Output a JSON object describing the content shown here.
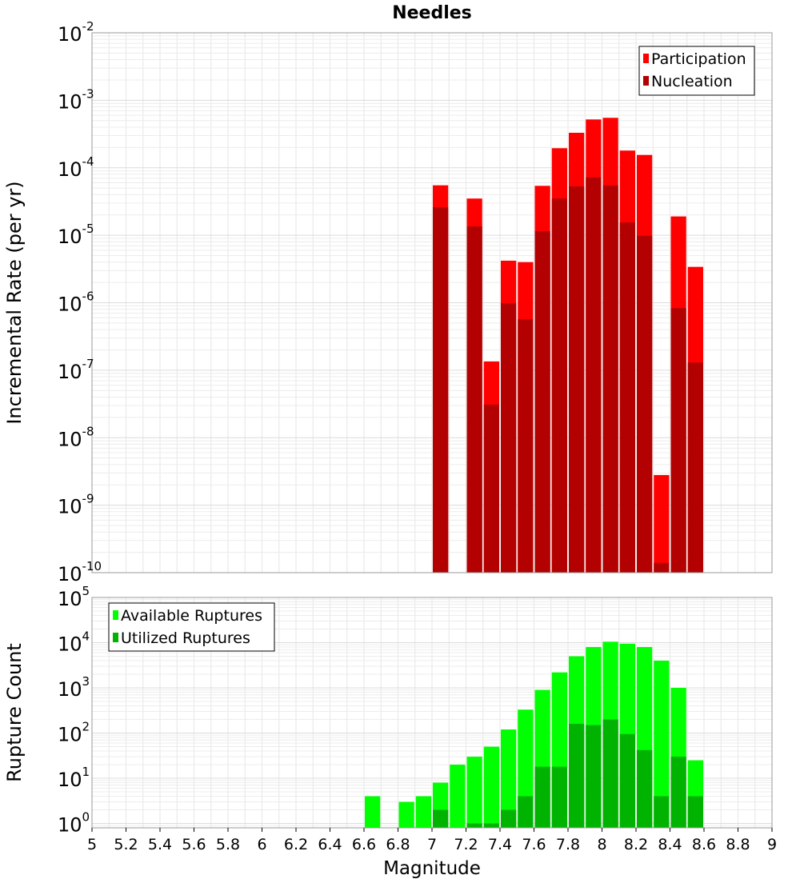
{
  "chart_data": [
    {
      "type": "bar",
      "title": "Needles",
      "xlabel": "",
      "ylabel": "Incremental Rate (per yr)",
      "yscale": "log",
      "ylim": [
        1e-10,
        0.01
      ],
      "xlim": [
        5,
        9
      ],
      "bar_width": 0.1,
      "grid": true,
      "legend_position": "top-right",
      "colors": {
        "participation": "#ff0000",
        "nucleation": "#b30000"
      },
      "y_ticks": [
        {
          "base": "10",
          "exp": "-10"
        },
        {
          "base": "10",
          "exp": "-9"
        },
        {
          "base": "10",
          "exp": "-8"
        },
        {
          "base": "10",
          "exp": "-7"
        },
        {
          "base": "10",
          "exp": "-6"
        },
        {
          "base": "10",
          "exp": "-5"
        },
        {
          "base": "10",
          "exp": "-4"
        },
        {
          "base": "10",
          "exp": "-3"
        },
        {
          "base": "10",
          "exp": "-2"
        }
      ],
      "series": [
        {
          "name": "Participation",
          "x": [
            7.0,
            7.2,
            7.3,
            7.4,
            7.5,
            7.6,
            7.7,
            7.8,
            7.9,
            8.0,
            8.1,
            8.2,
            8.3,
            8.4,
            8.5
          ],
          "values": [
            5.5e-05,
            3.5e-05,
            1.35e-07,
            4.2e-06,
            4e-06,
            5.4e-05,
            0.000195,
            0.00033,
            0.00052,
            0.00055,
            0.00018,
            0.000155,
            2.8e-09,
            1.9e-05,
            3.4e-06
          ]
        },
        {
          "name": "Nucleation",
          "x": [
            7.0,
            7.2,
            7.3,
            7.4,
            7.5,
            7.6,
            7.7,
            7.8,
            7.9,
            8.0,
            8.1,
            8.2,
            8.3,
            8.4,
            8.5
          ],
          "values": [
            2.6e-05,
            1.35e-05,
            3.1e-08,
            9.8e-07,
            5.7e-07,
            1.15e-05,
            3.5e-05,
            5.3e-05,
            7.2e-05,
            5.5e-05,
            1.55e-05,
            9.8e-06,
            1.4e-10,
            8.3e-07,
            1.3e-07
          ]
        }
      ]
    },
    {
      "type": "bar",
      "title": "",
      "xlabel": "Magnitude",
      "ylabel": "Rupture Count",
      "yscale": "log",
      "ylim": [
        0.8,
        100000.0
      ],
      "xlim": [
        5,
        9
      ],
      "bar_width": 0.1,
      "grid": true,
      "legend_position": "top-left",
      "colors": {
        "available": "#00ff00",
        "utilized": "#00b300"
      },
      "x_ticks": [
        "5",
        "5.2",
        "5.4",
        "5.6",
        "5.8",
        "6",
        "6.2",
        "6.4",
        "6.6",
        "6.8",
        "7",
        "7.2",
        "7.4",
        "7.6",
        "7.8",
        "8",
        "8.2",
        "8.4",
        "8.6",
        "8.8",
        "9"
      ],
      "y_ticks": [
        {
          "base": "10",
          "exp": "0"
        },
        {
          "base": "10",
          "exp": "1"
        },
        {
          "base": "10",
          "exp": "2"
        },
        {
          "base": "10",
          "exp": "3"
        },
        {
          "base": "10",
          "exp": "4"
        },
        {
          "base": "10",
          "exp": "5"
        }
      ],
      "series": [
        {
          "name": "Available Ruptures",
          "x": [
            6.6,
            6.8,
            6.9,
            7.0,
            7.1,
            7.2,
            7.3,
            7.4,
            7.5,
            7.6,
            7.7,
            7.8,
            7.9,
            8.0,
            8.1,
            8.2,
            8.3,
            8.4,
            8.5
          ],
          "values": [
            4,
            3,
            4,
            8,
            20,
            30,
            50,
            120,
            330,
            900,
            2200,
            5000,
            8000,
            10500,
            9500,
            8000,
            4000,
            1000,
            25
          ]
        },
        {
          "name": "Utilized Ruptures",
          "x": [
            7.0,
            7.2,
            7.3,
            7.4,
            7.5,
            7.6,
            7.7,
            7.8,
            7.9,
            8.0,
            8.1,
            8.2,
            8.3,
            8.4,
            8.5
          ],
          "values": [
            2,
            1,
            1,
            2,
            4,
            18,
            18,
            160,
            150,
            200,
            95,
            42,
            4,
            30,
            4
          ]
        }
      ]
    }
  ]
}
